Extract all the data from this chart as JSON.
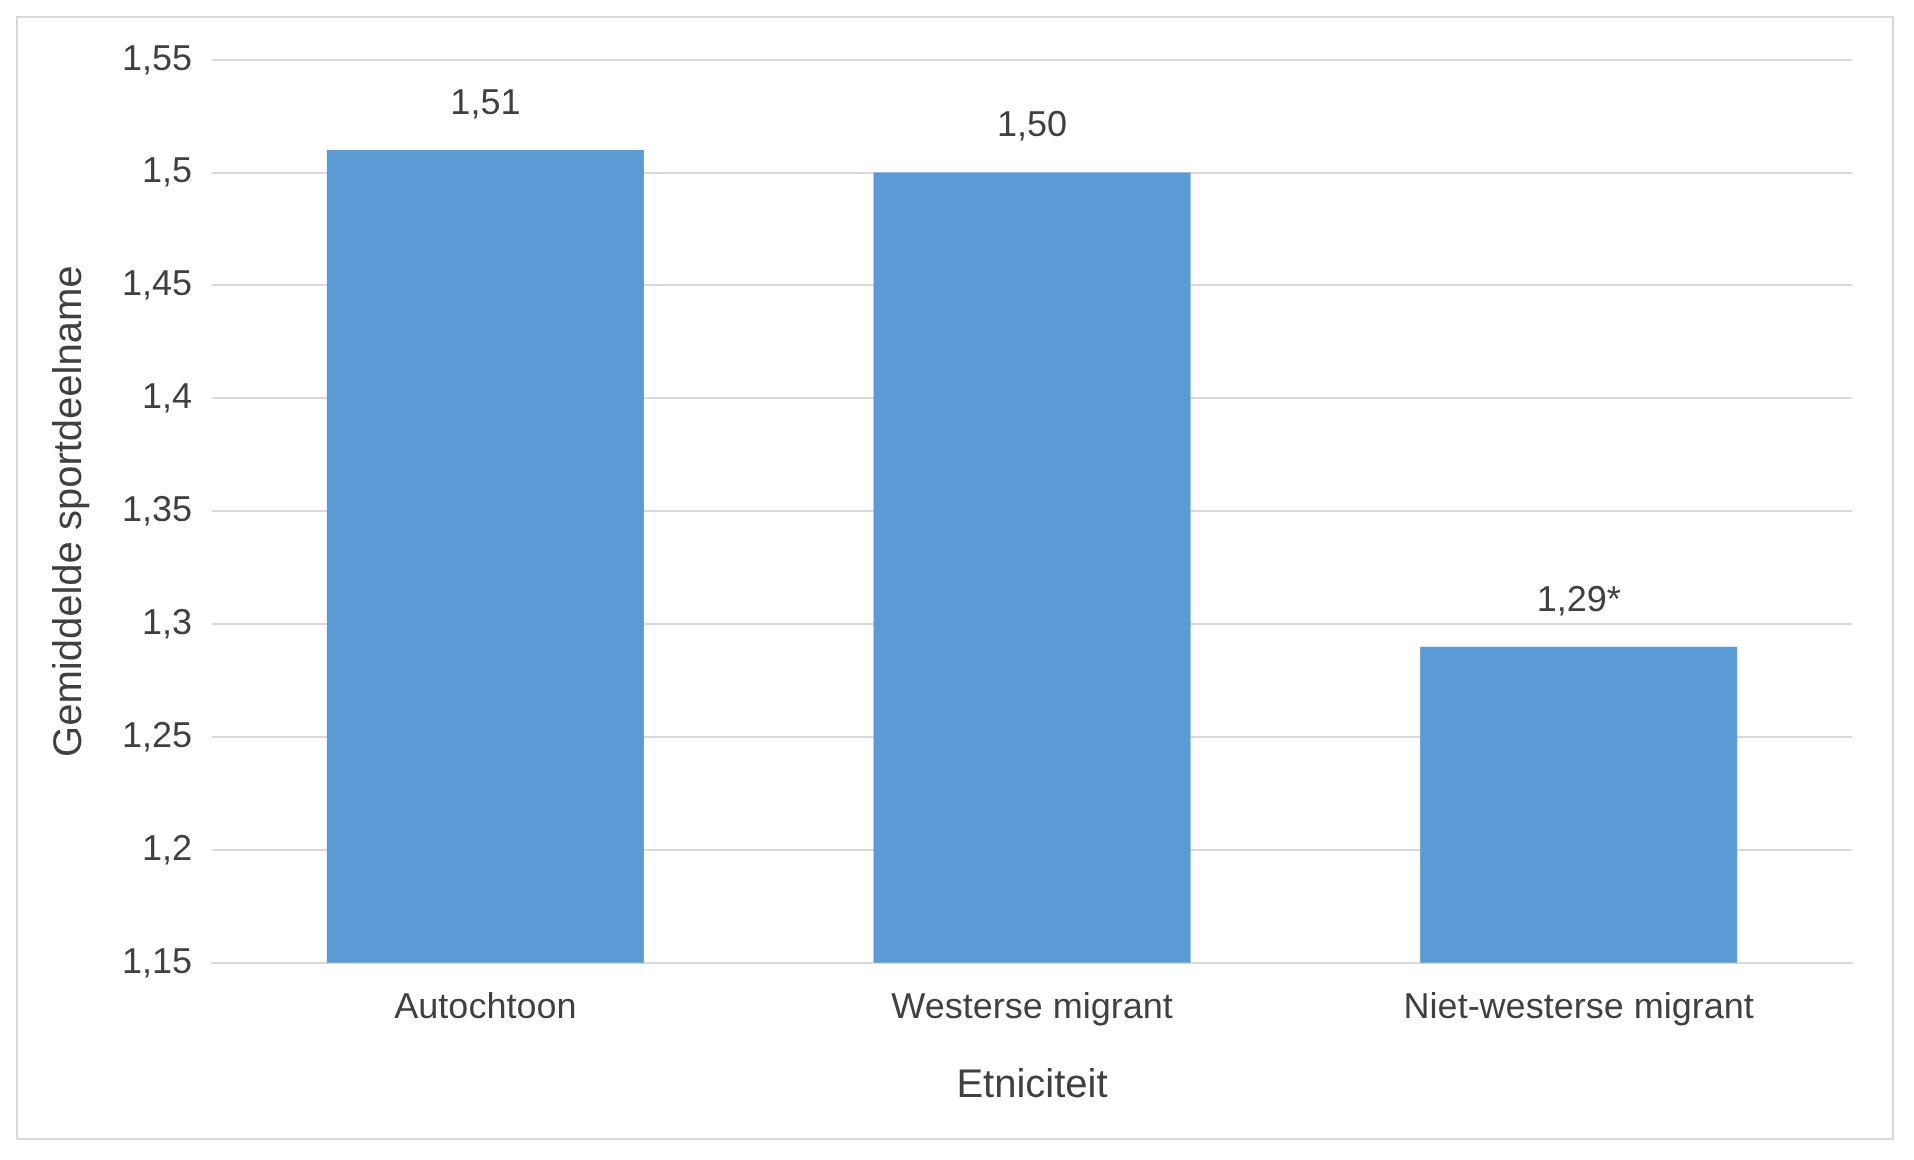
{
  "chart_data": {
    "type": "bar",
    "xlabel": "Etniciteit",
    "ylabel": "Gemiddelde sportdeelname",
    "categories": [
      "Autochtoon",
      "Westerse migrant",
      "Niet-westerse migrant"
    ],
    "values": [
      1.51,
      1.5,
      1.29
    ],
    "value_labels": [
      "1,51",
      "1,50",
      "1,29*"
    ],
    "color": "#5b9bd5",
    "ylim": [
      1.15,
      1.55
    ],
    "yticks": [
      {
        "value": 1.15,
        "label": "1,15"
      },
      {
        "value": 1.2,
        "label": "1,2"
      },
      {
        "value": 1.25,
        "label": "1,25"
      },
      {
        "value": 1.3,
        "label": "1,3"
      },
      {
        "value": 1.35,
        "label": "1,35"
      },
      {
        "value": 1.4,
        "label": "1,4"
      },
      {
        "value": 1.45,
        "label": "1,45"
      },
      {
        "value": 1.5,
        "label": "1,5"
      },
      {
        "value": 1.55,
        "label": "1,55"
      }
    ],
    "grid": "y"
  }
}
